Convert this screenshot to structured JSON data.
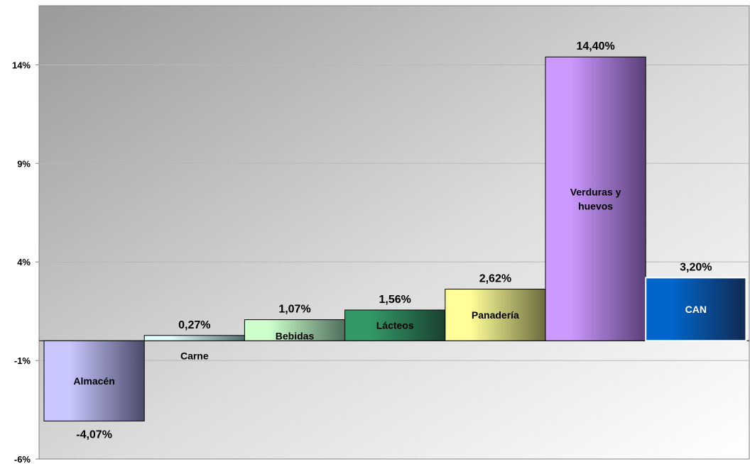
{
  "chart_data": {
    "type": "bar",
    "title": "",
    "xlabel": "",
    "ylabel": "",
    "ylim": [
      -6,
      17
    ],
    "yticks": [
      -6,
      -1,
      4,
      9,
      14
    ],
    "ytick_labels": [
      "-6%",
      "-1%",
      "4%",
      "9%",
      "14%"
    ],
    "grid": true,
    "legend": "none",
    "categories": [
      "Almacén",
      "Carne",
      "Bebidas",
      "Lácteos",
      "Panadería",
      "Verduras y huevos",
      "CAN"
    ],
    "values": [
      -4.07,
      0.27,
      1.07,
      1.56,
      2.62,
      14.4,
      3.2
    ],
    "value_labels": [
      "-4,07%",
      "0,27%",
      "1,07%",
      "1,56%",
      "2,62%",
      "14,40%",
      "3,20%"
    ],
    "category_label_lines": [
      [
        "Almacén"
      ],
      [
        "Carne"
      ],
      [
        "Bebidas"
      ],
      [
        "Lácteos"
      ],
      [
        "Panadería"
      ],
      [
        "Verduras y",
        "huevos"
      ],
      [
        "CAN"
      ]
    ],
    "bar_colors": [
      [
        "#c8c8ff",
        "#4a4a6a"
      ],
      [
        "#e0ffff",
        "#4f6f6f"
      ],
      [
        "#ccffcc",
        "#4f6e5a"
      ],
      [
        "#339966",
        "#1a4030"
      ],
      [
        "#ffff99",
        "#6b6b3f"
      ],
      [
        "#cc99ff",
        "#5a3f78"
      ],
      [
        "#0066cc",
        "#122a52"
      ]
    ],
    "category_label_colors": [
      "#000000",
      "#000000",
      "#000000",
      "#000000",
      "#000000",
      "#000000",
      "#ffffff"
    ]
  }
}
